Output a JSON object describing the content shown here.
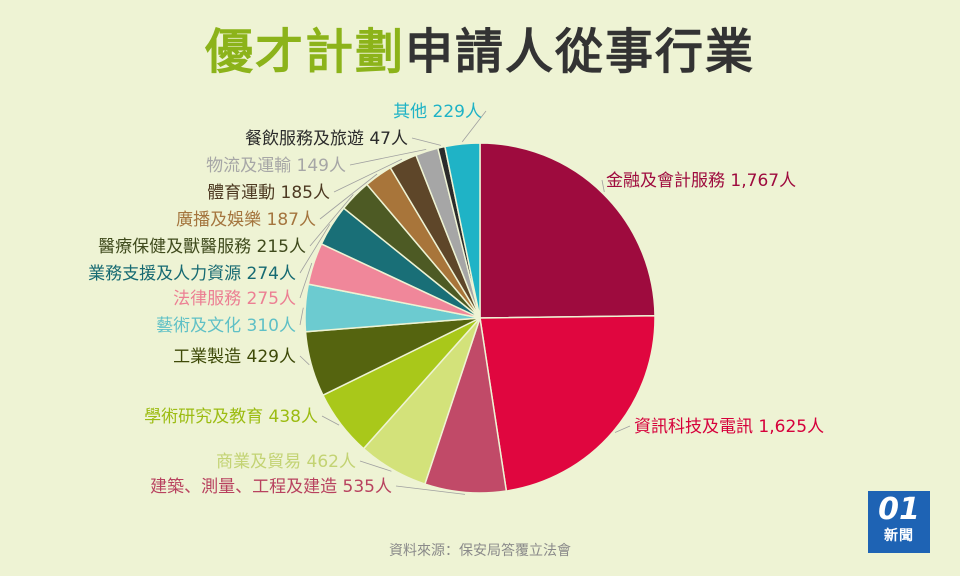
{
  "header": {
    "title_highlight": "優才計劃",
    "title_rest": "申請人從事行業"
  },
  "footer": {
    "source": "資料來源：保安局答覆立法會",
    "logo_main": "01",
    "logo_sub": "新聞"
  },
  "chart_data": {
    "type": "pie",
    "title": "優才計劃申請人從事行業",
    "unit": "人",
    "slices": [
      {
        "label": "金融及會計服務",
        "value": 1767,
        "display": "1,767人",
        "color": "#9e0b3e"
      },
      {
        "label": "資訊科技及電訊",
        "value": 1625,
        "display": "1,625人",
        "color": "#e0063f"
      },
      {
        "label": "建築、測量、工程及建造",
        "value": 535,
        "display": "535人",
        "color": "#c14a68"
      },
      {
        "label": "商業及貿易",
        "value": 462,
        "display": "462人",
        "color": "#d3e27a"
      },
      {
        "label": "學術研究及教育",
        "value": 438,
        "display": "438人",
        "color": "#a9c81a"
      },
      {
        "label": "工業製造",
        "value": 429,
        "display": "429人",
        "color": "#55640f"
      },
      {
        "label": "藝術及文化",
        "value": 310,
        "display": "310人",
        "color": "#6ccbd0"
      },
      {
        "label": "法律服務",
        "value": 275,
        "display": "275人",
        "color": "#f0879a"
      },
      {
        "label": "業務支援及人力資源",
        "value": 274,
        "display": "274人",
        "color": "#196f77"
      },
      {
        "label": "醫療保健及獸醫服務",
        "value": 215,
        "display": "215人",
        "color": "#4d5a24"
      },
      {
        "label": "廣播及娛樂",
        "value": 187,
        "display": "187人",
        "color": "#a8753a"
      },
      {
        "label": "體育運動",
        "value": 185,
        "display": "185人",
        "color": "#5e4629"
      },
      {
        "label": "物流及運輸",
        "value": 149,
        "display": "149人",
        "color": "#a6a6a6"
      },
      {
        "label": "餐飲服務及旅遊",
        "value": 47,
        "display": "47人",
        "color": "#2b2b2b"
      },
      {
        "label": "其他",
        "value": 229,
        "display": "229人",
        "color": "#1fb3c6"
      }
    ],
    "label_colors": [
      "#9e0b3e",
      "#d6003b",
      "#b8425f",
      "#c3d373",
      "#9cbc12",
      "#3e4a08",
      "#5fc0c6",
      "#ec7f93",
      "#166a72",
      "#3f4a1c",
      "#a4753e",
      "#4d3a22",
      "#a6a6a6",
      "#2b2b2b",
      "#1fb3c6"
    ]
  }
}
